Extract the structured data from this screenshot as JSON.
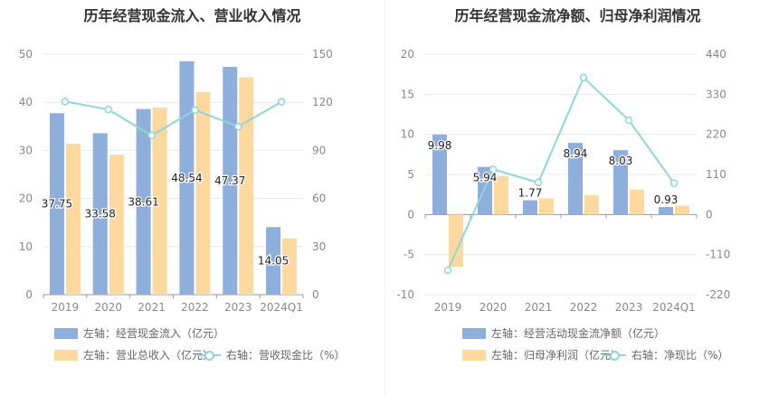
{
  "colors": {
    "blue": "#8eaedc",
    "orange": "#fdd9a0",
    "line": "#8fd6dc",
    "grid": "#e8e8e8",
    "axis": "#999999"
  },
  "chart_data": [
    {
      "type": "bar",
      "title": "历年经营现金流入、营业收入情况",
      "categories": [
        "2019",
        "2020",
        "2021",
        "2022",
        "2023",
        "2024Q1"
      ],
      "y_left": {
        "range": [
          0,
          50
        ],
        "ticks": [
          "0",
          "10",
          "20",
          "30",
          "40",
          "50"
        ]
      },
      "y_right": {
        "range": [
          0,
          150
        ],
        "ticks": [
          "0",
          "30",
          "60",
          "90",
          "120",
          "150"
        ]
      },
      "series": [
        {
          "name": "左轴：经营现金流入（亿元）",
          "type": "bar",
          "axis": "left",
          "color": "#8eaedc",
          "values": [
            37.75,
            33.58,
            38.61,
            48.54,
            47.37,
            14.05
          ],
          "labels": [
            "37.75",
            "33.58",
            "38.61",
            "48.54",
            "47.37",
            "14.05"
          ]
        },
        {
          "name": "左轴：营业总收入（亿元）",
          "type": "bar",
          "axis": "left",
          "color": "#fdd9a0",
          "values": [
            31.4,
            29.1,
            38.9,
            42.1,
            45.2,
            11.7
          ]
        },
        {
          "name": "右轴：营收现金比（%）",
          "type": "line",
          "axis": "right",
          "color": "#8fd6dc",
          "values": [
            120.5,
            115.5,
            99.3,
            115.2,
            104.8,
            120.3
          ]
        }
      ],
      "legend": [
        "左轴：经营现金流入（亿元）",
        "左轴：营业总收入（亿元）",
        "右轴：营收现金比（%）"
      ]
    },
    {
      "type": "bar",
      "title": "历年经营现金流净额、归母净利润情况",
      "categories": [
        "2019",
        "2020",
        "2021",
        "2022",
        "2023",
        "2024Q1"
      ],
      "y_left": {
        "range": [
          -10,
          20
        ],
        "ticks": [
          "-10",
          "-5",
          "0",
          "5",
          "10",
          "15",
          "20"
        ]
      },
      "y_right": {
        "range": [
          -220,
          440
        ],
        "ticks": [
          "-220",
          "-110",
          "0",
          "110",
          "220",
          "330",
          "440"
        ]
      },
      "series": [
        {
          "name": "左轴：经营活动现金流净额（亿元）",
          "type": "bar",
          "axis": "left",
          "color": "#8eaedc",
          "values": [
            9.98,
            5.94,
            1.77,
            8.94,
            8.03,
            0.93
          ],
          "labels": [
            "9.98",
            "5.94",
            "1.77",
            "8.94",
            "8.03",
            "0.93"
          ]
        },
        {
          "name": "左轴：归母净利润（亿元）",
          "type": "bar",
          "axis": "left",
          "color": "#fdd9a0",
          "values": [
            -6.5,
            4.8,
            2.0,
            2.4,
            3.1,
            1.1
          ]
        },
        {
          "name": "右轴：净现比（%）",
          "type": "line",
          "axis": "right",
          "color": "#8fd6dc",
          "values": [
            -153,
            124,
            88,
            376,
            259,
            86
          ]
        }
      ],
      "legend": [
        "左轴：经营活动现金流净额（亿元）",
        "左轴：归母净利润（亿元）",
        "右轴：净现比（%）"
      ]
    }
  ]
}
